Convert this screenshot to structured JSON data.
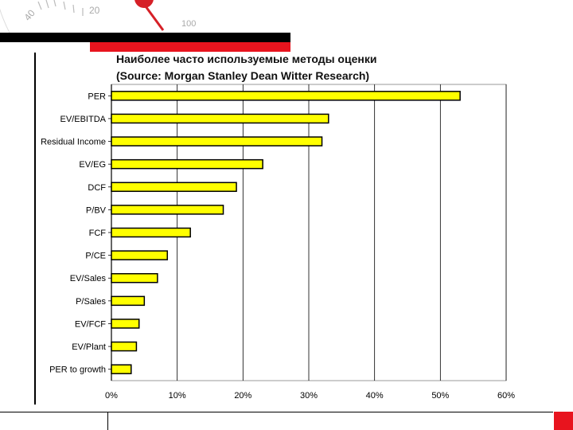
{
  "header": {
    "gauge_labels": [
      "20",
      "40",
      "100"
    ],
    "colors": {
      "black_band": "#000000",
      "red_band": "#e8141e",
      "gauge_red": "#d62027"
    }
  },
  "chart_data": {
    "type": "bar",
    "orientation": "horizontal",
    "title": "Наиболее часто используемые методы оценки",
    "subtitle": "(Source: Morgan Stanley Dean Witter Research)",
    "categories": [
      "PER",
      "EV/EBITDA",
      "Residual Income",
      "EV/EG",
      "DCF",
      "P/BV",
      "FCF",
      "P/CE",
      "EV/Sales",
      "P/Sales",
      "EV/FCF",
      "EV/Plant",
      "PER to growth"
    ],
    "values": [
      53,
      33,
      32,
      23,
      19,
      17,
      12,
      8.5,
      7,
      5,
      4.2,
      3.8,
      3
    ],
    "xlim": [
      0,
      60
    ],
    "xticks": [
      0,
      10,
      20,
      30,
      40,
      50,
      60
    ],
    "xtick_labels": [
      "0%",
      "10%",
      "20%",
      "30%",
      "40%",
      "50%",
      "60%"
    ],
    "grid": "vertical",
    "bar_color": "#ffff00",
    "bar_edge_color": "#000000",
    "xlabel": "",
    "ylabel": ""
  }
}
